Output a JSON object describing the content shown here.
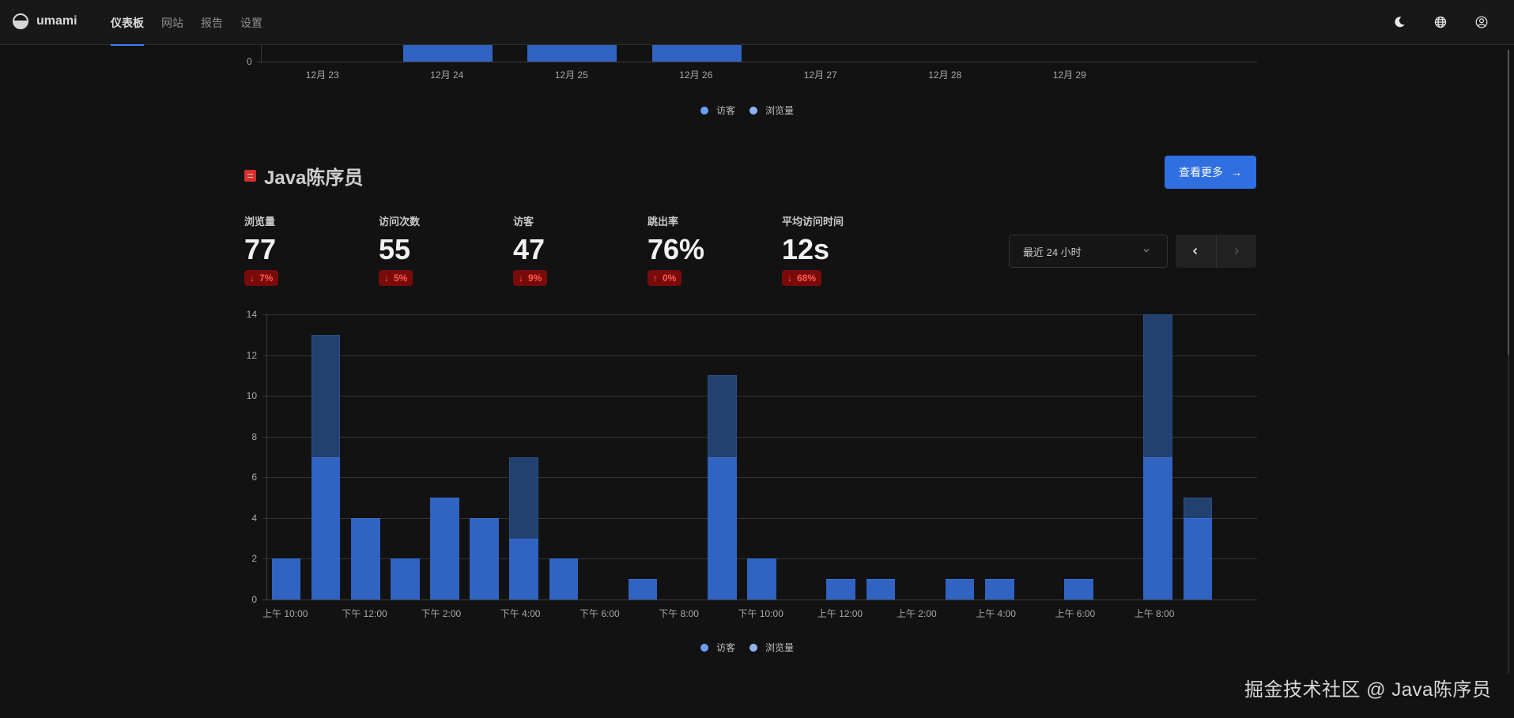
{
  "app": {
    "name": "umami",
    "nav": [
      {
        "label": "仪表板",
        "active": true
      },
      {
        "label": "网站",
        "active": false
      },
      {
        "label": "报告",
        "active": false
      },
      {
        "label": "设置",
        "active": false
      }
    ],
    "icons": [
      "moon-icon",
      "globe-icon",
      "user-circle-icon"
    ]
  },
  "top_chart": {
    "legend": [
      {
        "label": "访客",
        "color": "#6b9ef5"
      },
      {
        "label": "浏览量",
        "color": "#8fb3f2"
      }
    ]
  },
  "site": {
    "name": "Java陈序员",
    "favicon_color": "#d32f2f",
    "view_more_label": "查看更多",
    "view_more_icon": "→"
  },
  "metrics": [
    {
      "label": "浏览量",
      "value": "77",
      "direction": "down",
      "arrow": "↓",
      "change": "7%"
    },
    {
      "label": "访问次数",
      "value": "55",
      "direction": "down",
      "arrow": "↓",
      "change": "5%"
    },
    {
      "label": "访客",
      "value": "47",
      "direction": "down",
      "arrow": "↓",
      "change": "9%"
    },
    {
      "label": "跳出率",
      "value": "76%",
      "direction": "up",
      "arrow": "↑",
      "change": "0%"
    },
    {
      "label": "平均访问时间",
      "value": "12s",
      "direction": "down",
      "arrow": "↓",
      "change": "68%"
    }
  ],
  "controls": {
    "date_range": "最近 24 小时",
    "prev_icon": "‹",
    "next_icon": "›"
  },
  "main_legend": [
    {
      "label": "访客",
      "color": "#6b9ef5"
    },
    {
      "label": "浏览量",
      "color": "#8fb3f2"
    }
  ],
  "watermark": "掘金技术社区 @ Java陈序员",
  "chart_data": [
    {
      "type": "bar",
      "title": "",
      "partial_view": true,
      "categories": [
        "12月 23",
        "12月 24",
        "12月 25",
        "12月 26",
        "12月 27",
        "12月 28",
        "12月 29"
      ],
      "visible_y_ticks": [
        "0"
      ],
      "series": [
        {
          "name": "访客",
          "color": "#3063c2",
          "has_data": [
            false,
            true,
            true,
            true,
            false,
            false,
            false
          ]
        },
        {
          "name": "浏览量",
          "color": "#23416e",
          "has_data": [
            false,
            true,
            true,
            true,
            false,
            false,
            false
          ]
        }
      ],
      "legend_position": "bottom"
    },
    {
      "type": "bar",
      "stacked_overlay": true,
      "title": "",
      "xlabel": "",
      "ylabel": "",
      "ylim": [
        0,
        14
      ],
      "y_ticks": [
        0,
        2,
        4,
        6,
        8,
        10,
        12,
        14
      ],
      "grid": true,
      "slots": 25,
      "x_tick_labels": [
        {
          "slot": 0,
          "label": "上午 10:00"
        },
        {
          "slot": 2,
          "label": "下午 12:00"
        },
        {
          "slot": 4,
          "label": "下午 2:00"
        },
        {
          "slot": 6,
          "label": "下午 4:00"
        },
        {
          "slot": 8,
          "label": "下午 6:00"
        },
        {
          "slot": 10,
          "label": "下午 8:00"
        },
        {
          "slot": 12,
          "label": "下午 10:00"
        },
        {
          "slot": 14,
          "label": "上午 12:00"
        },
        {
          "slot": 16,
          "label": "上午 2:00"
        },
        {
          "slot": 18,
          "label": "上午 4:00"
        },
        {
          "slot": 20,
          "label": "上午 6:00"
        },
        {
          "slot": 22,
          "label": "上午 8:00"
        }
      ],
      "series": [
        {
          "name": "访客",
          "color": "#3063c2",
          "values": [
            2,
            7,
            4,
            2,
            5,
            4,
            3,
            2,
            0,
            1,
            0,
            7,
            2,
            0,
            1,
            1,
            0,
            1,
            1,
            0,
            1,
            0,
            7,
            4
          ]
        },
        {
          "name": "浏览量",
          "color": "#23416e",
          "values": [
            2,
            13,
            4,
            2,
            5,
            4,
            7,
            2,
            0,
            1,
            0,
            11,
            2,
            0,
            1,
            1,
            0,
            1,
            1,
            0,
            1,
            0,
            14,
            5
          ]
        }
      ],
      "legend_position": "bottom"
    }
  ]
}
